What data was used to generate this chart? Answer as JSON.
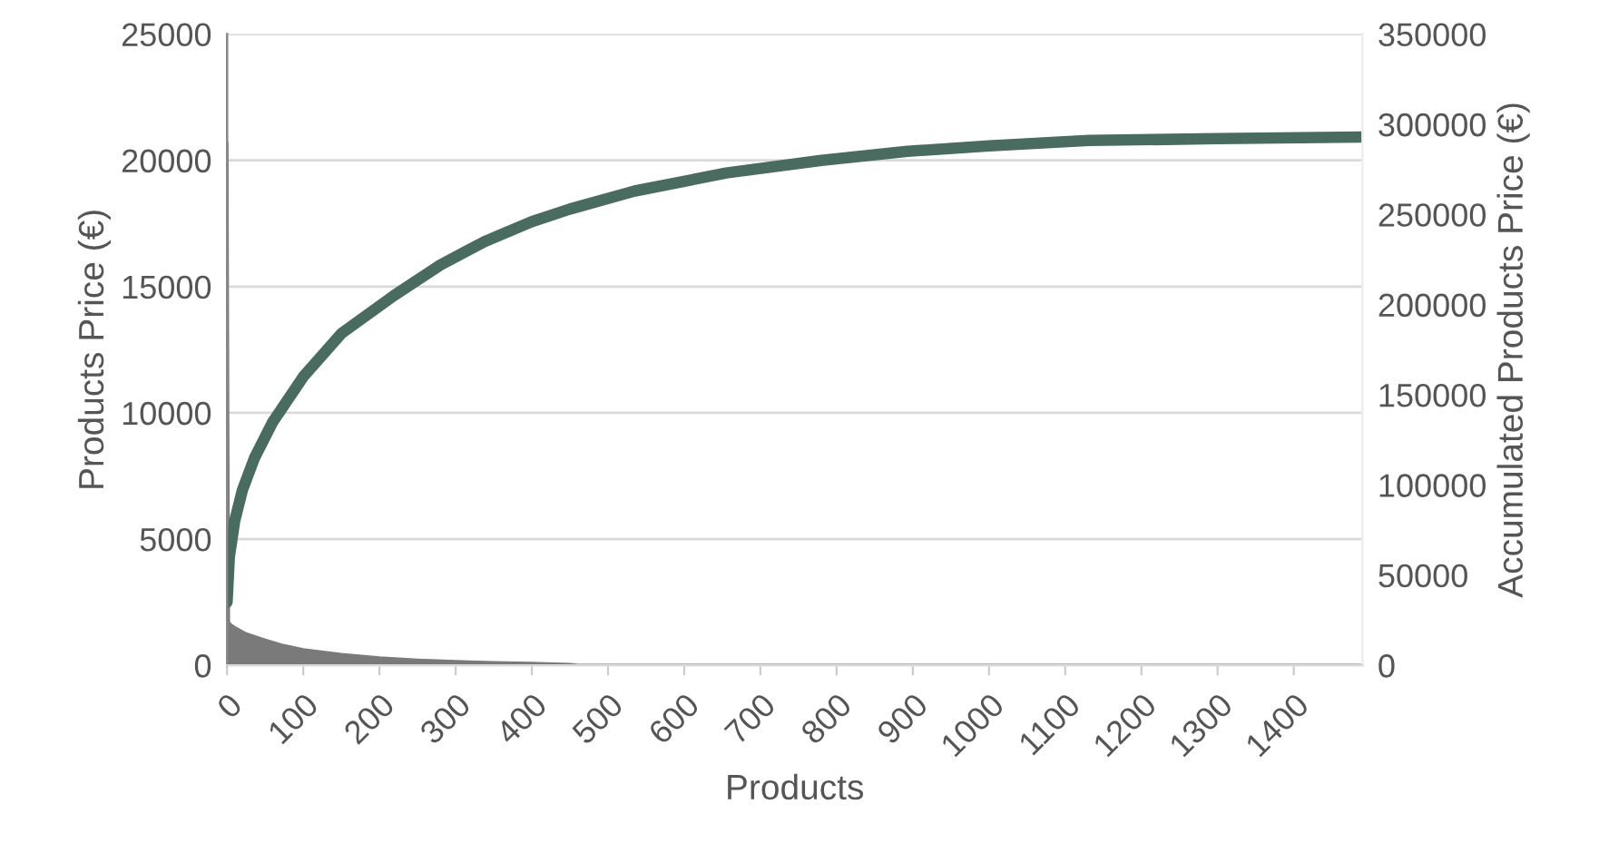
{
  "chart_data": {
    "type": "area",
    "xlabel": "Products",
    "ylabel": "Products Price (€)",
    "y2label": "Accumulated Products Price (€)",
    "xlim": [
      0,
      1490
    ],
    "xticks": [
      0,
      100,
      200,
      300,
      400,
      500,
      600,
      700,
      800,
      900,
      1000,
      1100,
      1200,
      1300,
      1400
    ],
    "ylim": [
      0,
      25000
    ],
    "yticks": [
      0,
      5000,
      10000,
      15000,
      20000,
      25000
    ],
    "y2lim": [
      0,
      350000
    ],
    "y2ticks": [
      0,
      50000,
      100000,
      150000,
      200000,
      250000,
      300000,
      350000
    ],
    "grid": "y",
    "legend": false,
    "series": [
      {
        "color": "#7a7a7a",
        "x": [
          0,
          1,
          2,
          5,
          10,
          25,
          50,
          75,
          100,
          150,
          200,
          250,
          300,
          350,
          400,
          450,
          460,
          1490
        ],
        "values": [
          20700,
          10100,
          1700,
          1600,
          1500,
          1250,
          1000,
          780,
          620,
          430,
          300,
          210,
          150,
          110,
          80,
          40,
          0,
          0
        ]
      },
      {
        "type": "line",
        "axis": "y2",
        "color": "#4a6b5f",
        "x": [
          0,
          3,
          10,
          20,
          36,
          60,
          100,
          150,
          219,
          280,
          338,
          400,
          450,
          535,
          655,
          780,
          893,
          1000,
          1131,
          1300,
          1488
        ],
        "values": [
          35000,
          60000,
          80000,
          97000,
          115000,
          135000,
          160000,
          184000,
          205000,
          222000,
          235000,
          246000,
          253000,
          263000,
          273000,
          280000,
          285000,
          288000,
          291000,
          292000,
          293000
        ]
      }
    ]
  }
}
